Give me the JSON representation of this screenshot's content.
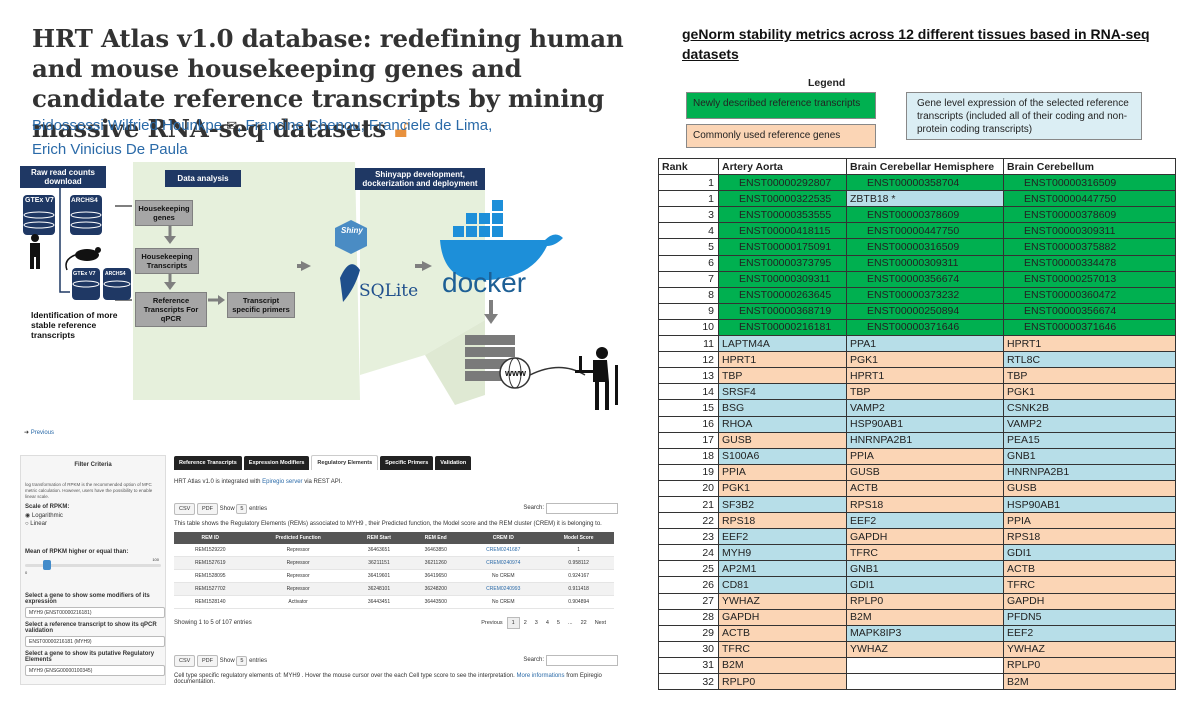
{
  "paper": {
    "title": "HRT Atlas v1.0 database: redefining human and mouse housekeeping genes and candidate reference transcripts by mining massive RNA-seq datasets",
    "authors": [
      "Bidossessi Wilfried Hounkpe",
      "Francine Chenou",
      "Franciele de Lima",
      "Erich Vinicius De Paula"
    ]
  },
  "workflow": {
    "raw": "Raw read counts download",
    "analysis": "Data analysis",
    "shiny": "Shinyapp development, dockerization and deployment",
    "gtex": "GTEx V7",
    "archs4": "ARCHS4",
    "hk_genes": "Housekeeping genes",
    "hk_transcripts": "Housekeeping Transcripts",
    "ref_transcripts": "Reference Transcripts For qPCR",
    "primers": "Transcript specific primers",
    "identification": "Identification of more stable reference transcripts",
    "shiny_logo": "Shiny",
    "sqlite_logo": "SQLite",
    "docker_logo": "docker",
    "www": "www"
  },
  "ui": {
    "previous": "Previous",
    "filter_title": "Filter Criteria",
    "filter_note": "log transformation of RPKM is the recommended option of MFC metric calculation. However, users have the possibility to enable linear scale.",
    "scale_label": "Scale of RPKM:",
    "scale_opt1": "Logarithmic",
    "scale_opt2": "Linear",
    "mean_label": "Mean of RPKM higher or equal than:",
    "slider_min": "0",
    "slider_max": "100",
    "slider_val": "0",
    "select1_label": "Select a gene to show some modifiers of its expression",
    "select1_val": "MYH9 (ENST00000216181)",
    "select2_label": "Select a reference transcript to show its qPCR validation",
    "select2_val": "ENST00000216181 (MYH9)",
    "select3_label": "Select a gene to show its putative Regulatory Elements",
    "select3_val": "MYH9 (ENSG00000100345)",
    "tabs": [
      "Reference Transcripts",
      "Expression Modifiers",
      "Regulatory Elements",
      "Specific Primers",
      "Validation"
    ],
    "integration_pre": "HRT Atlas v1.0 is integrated with",
    "integration_link": "Epiregio server",
    "integration_post": "via REST API.",
    "csv": "CSV",
    "pdf": "PDF",
    "show": "Show",
    "entries": "entries",
    "entries_val": "5",
    "search": "Search:",
    "table_desc": "This table shows the Regulatory Elements (REMs) associated to MYH9 , their Predicted function, the Model score and the REM cluster (CREM) it is belonging to.",
    "reg_headers": [
      "REM ID",
      "Predicted Function",
      "REM Start",
      "REM End",
      "CREM ID",
      "Model Score"
    ],
    "reg_rows": [
      [
        "REM1529220",
        "Repressor",
        "36463651",
        "36463850",
        "CREM0241687",
        "1"
      ],
      [
        "REM1527619",
        "Repressor",
        "36211151",
        "36211260",
        "CREM0240974",
        "0.958112"
      ],
      [
        "REM1528095",
        "Repressor",
        "36419601",
        "36419650",
        "No CREM",
        "0.924167"
      ],
      [
        "REM1527702",
        "Repressor",
        "36248101",
        "36248200",
        "CREM0240993",
        "0.911418"
      ],
      [
        "REM1528140",
        "Activator",
        "36443451",
        "36443500",
        "No CREM",
        "0.904894"
      ]
    ],
    "showing": "Showing 1 to 5 of 107 entries",
    "pager": [
      "Previous",
      "1",
      "2",
      "3",
      "4",
      "5",
      "...",
      "22",
      "Next"
    ],
    "celltype_pre": "Cell type specific regulatory elements of: MYH9 . Hover the mouse cursor over the each Cell type score to see the interpretation.",
    "celltype_link": "More informations",
    "celltype_post": "from Epiregio documentation."
  },
  "genorm": {
    "title": "geNorm stability metrics across 12 different tissues based in RNA-seq datasets",
    "legend_title": "Legend",
    "legend_green": "Newly described reference transcripts",
    "legend_orange": "Commonly used reference genes",
    "legend_blue": "Gene level expression of the selected reference transcripts (included all of their coding and non-protein coding transcripts)",
    "colors": {
      "green": "#00b050",
      "orange": "#fbd5b5",
      "blue": "#b7dee8"
    },
    "headers": [
      "Rank",
      "Artery Aorta",
      "Brain Cerebellar Hemisphere",
      "Brain Cerebellum"
    ],
    "rows": [
      [
        "1",
        "ENST00000292807",
        "g",
        "ENST00000358704",
        "g",
        "ENST00000316509",
        "g"
      ],
      [
        "1",
        "ENST00000322535",
        "g",
        "ZBTB18 *",
        "b",
        "ENST00000447750",
        "g"
      ],
      [
        "3",
        "ENST00000353555",
        "g",
        "ENST00000378609",
        "g",
        "ENST00000378609",
        "g"
      ],
      [
        "4",
        "ENST00000418115",
        "g",
        "ENST00000447750",
        "g",
        "ENST00000309311",
        "g"
      ],
      [
        "5",
        "ENST00000175091",
        "g",
        "ENST00000316509",
        "g",
        "ENST00000375882",
        "g"
      ],
      [
        "6",
        "ENST00000373795",
        "g",
        "ENST00000309311",
        "g",
        "ENST00000334478",
        "g"
      ],
      [
        "7",
        "ENST00000309311",
        "g",
        "ENST00000356674",
        "g",
        "ENST00000257013",
        "g"
      ],
      [
        "8",
        "ENST00000263645",
        "g",
        "ENST00000373232",
        "g",
        "ENST00000360472",
        "g"
      ],
      [
        "9",
        "ENST00000368719",
        "g",
        "ENST00000250894",
        "g",
        "ENST00000356674",
        "g"
      ],
      [
        "10",
        "ENST00000216181",
        "g",
        "ENST00000371646",
        "g",
        "ENST00000371646",
        "g"
      ],
      [
        "11",
        "LAPTM4A",
        "b",
        "PPA1",
        "b",
        "HPRT1",
        "o"
      ],
      [
        "12",
        "HPRT1",
        "o",
        "PGK1",
        "o",
        "RTL8C",
        "b"
      ],
      [
        "13",
        "TBP",
        "o",
        "HPRT1",
        "o",
        "TBP",
        "o"
      ],
      [
        "14",
        "SRSF4",
        "b",
        "TBP",
        "o",
        "PGK1",
        "o"
      ],
      [
        "15",
        "BSG",
        "b",
        "VAMP2",
        "b",
        "CSNK2B",
        "b"
      ],
      [
        "16",
        "RHOA",
        "b",
        "HSP90AB1",
        "b",
        "VAMP2",
        "b"
      ],
      [
        "17",
        "GUSB",
        "o",
        "HNRNPA2B1",
        "b",
        "PEA15",
        "b"
      ],
      [
        "18",
        "S100A6",
        "b",
        "PPIA",
        "o",
        "GNB1",
        "b"
      ],
      [
        "19",
        "PPIA",
        "o",
        "GUSB",
        "o",
        "HNRNPA2B1",
        "b"
      ],
      [
        "20",
        "PGK1",
        "o",
        "ACTB",
        "o",
        "GUSB",
        "o"
      ],
      [
        "21",
        "SF3B2",
        "b",
        "RPS18",
        "o",
        "HSP90AB1",
        "b"
      ],
      [
        "22",
        "RPS18",
        "o",
        "EEF2",
        "b",
        "PPIA",
        "o"
      ],
      [
        "23",
        "EEF2",
        "b",
        "GAPDH",
        "o",
        "RPS18",
        "o"
      ],
      [
        "24",
        "MYH9",
        "b",
        "TFRC",
        "o",
        "GDI1",
        "b"
      ],
      [
        "25",
        "AP2M1",
        "b",
        "GNB1",
        "b",
        "ACTB",
        "o"
      ],
      [
        "26",
        "CD81",
        "b",
        "GDI1",
        "b",
        "TFRC",
        "o"
      ],
      [
        "27",
        "YWHAZ",
        "o",
        "RPLP0",
        "o",
        "GAPDH",
        "o"
      ],
      [
        "28",
        "GAPDH",
        "o",
        "B2M",
        "o",
        "PFDN5",
        "b"
      ],
      [
        "29",
        "ACTB",
        "o",
        "MAPK8IP3",
        "b",
        "EEF2",
        "b"
      ],
      [
        "30",
        "TFRC",
        "o",
        "YWHAZ",
        "o",
        "YWHAZ",
        "o"
      ],
      [
        "31",
        "B2M",
        "o",
        "",
        "w",
        "RPLP0",
        "o"
      ],
      [
        "32",
        "RPLP0",
        "o",
        "",
        "w",
        "B2M",
        "o"
      ]
    ]
  }
}
